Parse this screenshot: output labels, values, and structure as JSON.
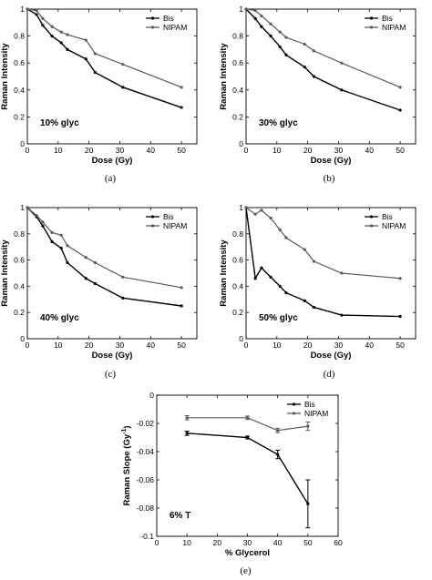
{
  "chart_data": [
    {
      "type": "line",
      "panel_label": "(a)",
      "annotation": "10% glyc",
      "xlabel": "Dose (Gy)",
      "ylabel": "Raman Intensity",
      "xlim": [
        0,
        55
      ],
      "ylim": [
        0,
        1
      ],
      "xticks": [
        0,
        10,
        20,
        30,
        40,
        50
      ],
      "yticks": [
        0,
        0.2,
        0.4,
        0.6,
        0.8,
        1
      ],
      "legend_position": "top-right",
      "series": [
        {
          "name": "Bis",
          "color": "#000000",
          "x": [
            0,
            3,
            5,
            8,
            11,
            13,
            19,
            22,
            31,
            50
          ],
          "y": [
            1,
            0.96,
            0.88,
            0.8,
            0.75,
            0.7,
            0.63,
            0.53,
            0.42,
            0.27
          ]
        },
        {
          "name": "NIPAM",
          "color": "#5a5a5a",
          "x": [
            0,
            3,
            5,
            8,
            11,
            13,
            19,
            22,
            31,
            50
          ],
          "y": [
            1,
            0.99,
            0.93,
            0.87,
            0.83,
            0.81,
            0.77,
            0.67,
            0.59,
            0.42
          ]
        }
      ]
    },
    {
      "type": "line",
      "panel_label": "(b)",
      "annotation": "30% glyc",
      "xlabel": "Dose (Gy)",
      "ylabel": "Raman Intensity",
      "xlim": [
        0,
        55
      ],
      "ylim": [
        0,
        1
      ],
      "xticks": [
        0,
        10,
        20,
        30,
        40,
        50
      ],
      "yticks": [
        0,
        0.2,
        0.4,
        0.6,
        0.8,
        1
      ],
      "legend_position": "top-right",
      "series": [
        {
          "name": "Bis",
          "color": "#000000",
          "x": [
            0,
            3,
            5,
            8,
            11,
            13,
            19,
            22,
            31,
            50
          ],
          "y": [
            1,
            0.93,
            0.87,
            0.8,
            0.72,
            0.66,
            0.57,
            0.5,
            0.4,
            0.25
          ]
        },
        {
          "name": "NIPAM",
          "color": "#5a5a5a",
          "x": [
            0,
            3,
            5,
            8,
            11,
            13,
            19,
            22,
            31,
            50
          ],
          "y": [
            1,
            0.99,
            0.95,
            0.89,
            0.83,
            0.79,
            0.74,
            0.69,
            0.6,
            0.42
          ]
        }
      ]
    },
    {
      "type": "line",
      "panel_label": "(c)",
      "annotation": "40% glyc",
      "xlabel": "Dose (Gy)",
      "ylabel": "Raman Intensity",
      "xlim": [
        0,
        55
      ],
      "ylim": [
        0,
        1
      ],
      "xticks": [
        0,
        10,
        20,
        30,
        40,
        50
      ],
      "yticks": [
        0,
        0.2,
        0.4,
        0.6,
        0.8,
        1
      ],
      "legend_position": "top-right",
      "series": [
        {
          "name": "Bis",
          "color": "#000000",
          "x": [
            0,
            3,
            5,
            8,
            11,
            13,
            19,
            22,
            31,
            50
          ],
          "y": [
            1,
            0.93,
            0.86,
            0.74,
            0.69,
            0.58,
            0.46,
            0.42,
            0.31,
            0.25
          ]
        },
        {
          "name": "NIPAM",
          "color": "#5a5a5a",
          "x": [
            0,
            3,
            5,
            8,
            11,
            13,
            19,
            22,
            31,
            50
          ],
          "y": [
            1,
            0.94,
            0.89,
            0.81,
            0.79,
            0.71,
            0.62,
            0.58,
            0.47,
            0.39
          ]
        }
      ]
    },
    {
      "type": "line",
      "panel_label": "(d)",
      "annotation": "50% glyc",
      "xlabel": "Dose (Gy)",
      "ylabel": "Raman Intensity",
      "xlim": [
        0,
        55
      ],
      "ylim": [
        0,
        1
      ],
      "xticks": [
        0,
        10,
        20,
        30,
        40,
        50
      ],
      "yticks": [
        0,
        0.2,
        0.4,
        0.6,
        0.8,
        1
      ],
      "legend_position": "top-right",
      "series": [
        {
          "name": "Bis",
          "color": "#000000",
          "x": [
            0,
            3,
            5,
            8,
            11,
            13,
            19,
            22,
            31,
            50
          ],
          "y": [
            1,
            0.46,
            0.54,
            0.47,
            0.4,
            0.35,
            0.29,
            0.24,
            0.18,
            0.17
          ]
        },
        {
          "name": "NIPAM",
          "color": "#5a5a5a",
          "x": [
            0,
            3,
            5,
            8,
            11,
            13,
            19,
            22,
            31,
            50
          ],
          "y": [
            1,
            0.95,
            0.98,
            0.92,
            0.83,
            0.77,
            0.68,
            0.59,
            0.5,
            0.46
          ]
        }
      ]
    },
    {
      "type": "line",
      "panel_label": "(e)",
      "annotation": "6% T",
      "xlabel": "% Glycerol",
      "ylabel": "Raman Slope (Gy",
      "ylabel_superscript": "-1",
      "ylabel_close": ")",
      "xlim": [
        0,
        60
      ],
      "ylim": [
        -0.1,
        0
      ],
      "xticks": [
        0,
        10,
        20,
        30,
        40,
        50,
        60
      ],
      "yticks": [
        -0.1,
        -0.08,
        -0.06,
        -0.04,
        -0.02,
        0
      ],
      "yticklabels": [
        "-0.1",
        "-0.08",
        "-0.06",
        "-0.04",
        "-0.02",
        "0"
      ],
      "legend_position": "top-right",
      "series": [
        {
          "name": "Bis",
          "color": "#000000",
          "x": [
            10,
            30,
            40,
            50
          ],
          "y": [
            -0.027,
            -0.03,
            -0.042,
            -0.077
          ],
          "error": [
            0.0015,
            0.001,
            0.003,
            0.017
          ]
        },
        {
          "name": "NIPAM",
          "color": "#5a5a5a",
          "x": [
            10,
            30,
            40,
            50
          ],
          "y": [
            -0.016,
            -0.016,
            -0.025,
            -0.022
          ],
          "error": [
            0.0015,
            0.0012,
            0.0015,
            0.003
          ]
        }
      ]
    }
  ]
}
